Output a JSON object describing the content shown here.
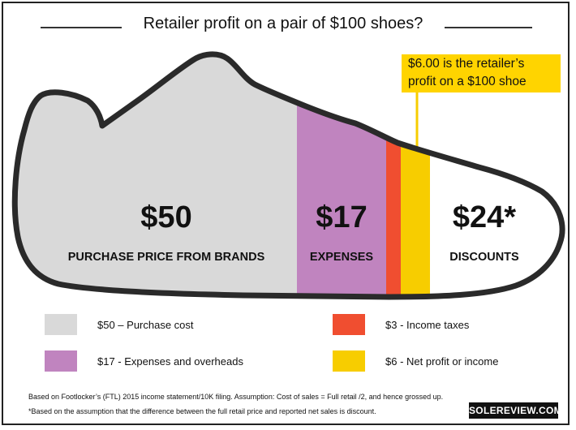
{
  "chart_data": {
    "type": "bar",
    "title": "Retailer profit on a pair of $100 shoes?",
    "callout": [
      "$6.00 is the retailer’s",
      "profit on a $100 shoe"
    ],
    "total": 100,
    "segments": [
      {
        "key": "purchase",
        "value": 50,
        "value_label": "$50",
        "caption": "PURCHASE PRICE FROM BRANDS",
        "legend": "$50 – Purchase cost",
        "color": "#d9d9d9"
      },
      {
        "key": "expenses",
        "value": 17,
        "value_label": "$17",
        "caption": "EXPENSES",
        "legend": "$17 - Expenses and overheads",
        "color": "#c084bf"
      },
      {
        "key": "taxes",
        "value": 3,
        "value_label": "",
        "caption": "",
        "legend": "$3 - Income taxes",
        "color": "#f04e30"
      },
      {
        "key": "profit",
        "value": 6,
        "value_label": "",
        "caption": "",
        "legend": "$6 - Net profit or income",
        "color": "#f7cd00"
      },
      {
        "key": "discounts",
        "value": 24,
        "value_label": "$24*",
        "caption": "DISCOUNTS",
        "legend": "",
        "color": "#ffffff"
      }
    ]
  },
  "footnotes": {
    "line1": "Based on Footlocker’s (FTL) 2015 income statement/10K filing. Assumption: Cost of sales = Full retail /2, and hence grossed up.",
    "line2": "*Based on the assumption that the difference between the full retail price and reported  net sales is discount."
  },
  "brand": "SOLEREVIEW.COM"
}
